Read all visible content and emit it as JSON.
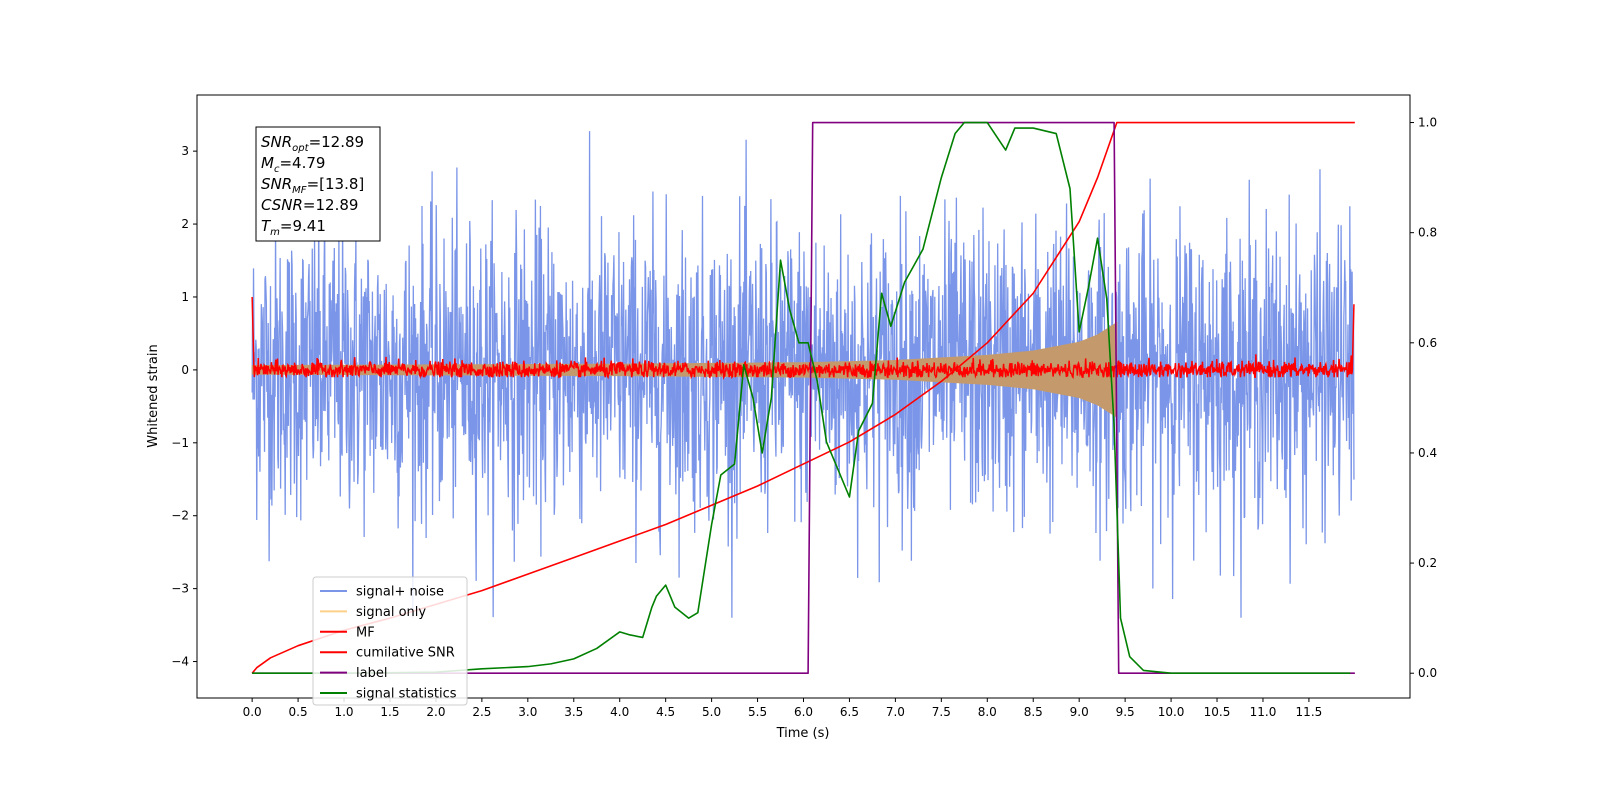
{
  "chart_data": {
    "type": "line",
    "xlabel": "Time (s)",
    "ylabel": "Whitened strain",
    "xlim": [
      -0.6,
      12.6
    ],
    "ylim": [
      -4.5,
      3.77
    ],
    "y2lim": [
      -0.045,
      1.05
    ],
    "x_ticks": [
      0.0,
      0.5,
      1.0,
      1.5,
      2.0,
      2.5,
      3.0,
      3.5,
      4.0,
      4.5,
      5.0,
      5.5,
      6.0,
      6.5,
      7.0,
      7.5,
      8.0,
      8.5,
      9.0,
      9.5,
      10.0,
      10.5,
      11.0,
      11.5
    ],
    "x_tick_labels": [
      "0.0",
      "0.5",
      "1.0",
      "1.5",
      "2.0",
      "2.5",
      "3.0",
      "3.5",
      "4.0",
      "4.5",
      "5.0",
      "5.5",
      "6.0",
      "6.5",
      "7.0",
      "7.5",
      "8.0",
      "8.5",
      "9.0",
      "9.5",
      "10.0",
      "10.5",
      "11.0",
      "11.5"
    ],
    "y_ticks": [
      3,
      2,
      1,
      0,
      -1,
      -2,
      -3,
      -4
    ],
    "y_tick_labels": [
      "3",
      "2",
      "1",
      "0",
      "−1",
      "−2",
      "−3",
      "−4"
    ],
    "y2_ticks": [
      1.0,
      0.8,
      0.6,
      0.4,
      0.2,
      0.0
    ],
    "y2_tick_labels": [
      "1.0",
      "0.8",
      "0.6",
      "0.4",
      "0.2",
      "0.0"
    ],
    "info_box": [
      {
        "base": "SNR",
        "sub": "opt",
        "value": "=12.89"
      },
      {
        "base": "M",
        "sub": "c",
        "value": "=4.79"
      },
      {
        "base": "SNR",
        "sub": "MF",
        "value": "=[13.8]"
      },
      {
        "base": "CSNR",
        "sub": "",
        "value": "=12.89"
      },
      {
        "base": "T",
        "sub": "m",
        "value": "=9.41"
      }
    ],
    "legend": {
      "placement": "lower-left",
      "entries": [
        {
          "label": "signal+ noise",
          "color": "#7b96e8"
        },
        {
          "label": "signal only",
          "color": "#fdd08a"
        },
        {
          "label": "MF",
          "color": "#ff0000"
        },
        {
          "label": "cumilative SNR",
          "color": "#ff0000"
        },
        {
          "label": "label",
          "color": "#800080"
        },
        {
          "label": "signal statistics",
          "color": "#008000"
        }
      ]
    },
    "series": [
      {
        "name": "signal+ noise",
        "axis": "left",
        "color": "#7b96e8",
        "x_range": [
          0.0,
          11.99
        ],
        "amplitude_std": 1.0,
        "note_values": "dense noise band between about -3.4 and 3.4"
      },
      {
        "name": "signal only",
        "axis": "left",
        "color": "#c49a6c",
        "envelope": {
          "x": [
            0.0,
            2.0,
            4.0,
            6.0,
            7.0,
            8.0,
            8.5,
            9.0,
            9.2,
            9.35,
            9.41
          ],
          "amp": [
            0.06,
            0.07,
            0.08,
            0.1,
            0.13,
            0.2,
            0.26,
            0.38,
            0.48,
            0.6,
            0.65
          ]
        }
      },
      {
        "name": "MF",
        "axis": "left",
        "color": "#ff0000",
        "x_range": [
          0.0,
          11.99
        ],
        "baseline": 0.0,
        "note_values": "noisy trace near 0 with peaks up to about 0.25, edge spikes near 1.0 at t=0 and t=12"
      },
      {
        "name": "cumilative SNR",
        "axis": "right",
        "color": "#ff0000",
        "x": [
          0.0,
          0.05,
          0.2,
          0.5,
          1.0,
          1.5,
          2.0,
          2.5,
          3.0,
          3.5,
          4.0,
          4.5,
          5.0,
          5.5,
          6.0,
          6.5,
          7.0,
          7.5,
          8.0,
          8.5,
          9.0,
          9.2,
          9.41,
          10.0,
          11.0,
          12.0
        ],
        "values": [
          0.0,
          0.01,
          0.028,
          0.05,
          0.078,
          0.1,
          0.125,
          0.15,
          0.18,
          0.21,
          0.24,
          0.27,
          0.305,
          0.34,
          0.38,
          0.42,
          0.47,
          0.53,
          0.6,
          0.69,
          0.82,
          0.9,
          1.0,
          1.0,
          1.0,
          1.0
        ]
      },
      {
        "name": "label",
        "axis": "right",
        "color": "#800080",
        "x": [
          0.0,
          6.05,
          6.1,
          9.38,
          9.43,
          12.0
        ],
        "values": [
          0.0,
          0.0,
          1.0,
          1.0,
          0.0,
          0.0
        ]
      },
      {
        "name": "signal statistics",
        "axis": "right",
        "color": "#008000",
        "x": [
          0.0,
          1.0,
          2.0,
          2.5,
          3.0,
          3.25,
          3.5,
          3.75,
          4.0,
          4.1,
          4.25,
          4.35,
          4.4,
          4.5,
          4.55,
          4.6,
          4.75,
          4.85,
          5.0,
          5.1,
          5.25,
          5.35,
          5.45,
          5.55,
          5.65,
          5.75,
          5.85,
          5.95,
          6.05,
          6.15,
          6.25,
          6.5,
          6.6,
          6.75,
          6.85,
          6.95,
          7.1,
          7.2,
          7.3,
          7.5,
          7.65,
          7.75,
          8.0,
          8.2,
          8.3,
          8.5,
          8.75,
          8.9,
          9.0,
          9.1,
          9.2,
          9.3,
          9.38,
          9.45,
          9.55,
          9.7,
          10.0,
          11.0,
          11.95
        ],
        "values": [
          0.0,
          0.0,
          0.002,
          0.008,
          0.012,
          0.017,
          0.026,
          0.045,
          0.075,
          0.07,
          0.065,
          0.12,
          0.14,
          0.16,
          0.14,
          0.12,
          0.1,
          0.11,
          0.27,
          0.36,
          0.38,
          0.56,
          0.5,
          0.4,
          0.5,
          0.75,
          0.66,
          0.6,
          0.6,
          0.53,
          0.42,
          0.32,
          0.44,
          0.49,
          0.69,
          0.63,
          0.71,
          0.74,
          0.77,
          0.9,
          0.98,
          1.0,
          1.0,
          0.95,
          0.99,
          0.99,
          0.98,
          0.88,
          0.62,
          0.7,
          0.79,
          0.68,
          0.45,
          0.1,
          0.03,
          0.005,
          0.0,
          0.0,
          0.0
        ]
      }
    ]
  }
}
